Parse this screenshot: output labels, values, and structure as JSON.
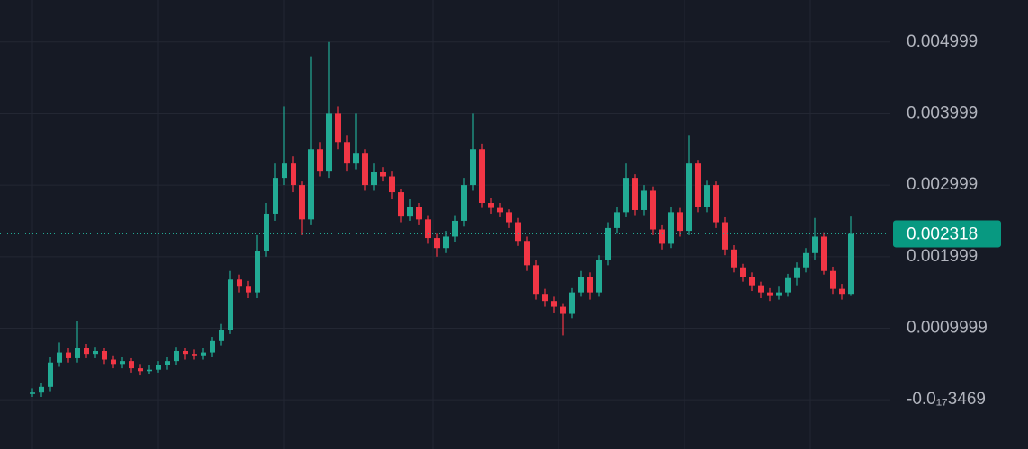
{
  "chart_data": {
    "type": "candlestick",
    "up_color": "#22ab94",
    "down_color": "#f23645",
    "grid": true,
    "ylim": [
      -0.000688,
      0.005586
    ],
    "yticks": [
      {
        "value": -3.469e-18,
        "label": "-0.0₁₇3469"
      },
      0.0009999,
      0.001999,
      0.002999,
      0.003999,
      0.004999
    ],
    "last_price": 0.002318,
    "open": [
      8e-05,
      0.0001,
      0.00018,
      0.00052,
      0.00066,
      0.00058,
      0.00072,
      0.00064,
      0.00068,
      0.00056,
      0.0005,
      0.00054,
      0.00044,
      0.0004,
      0.00042,
      0.00048,
      0.00054,
      0.00068,
      0.00064,
      0.00062,
      0.00066,
      0.00082,
      0.00098,
      0.00168,
      0.00158,
      0.0015,
      0.00208,
      0.0026,
      0.0031,
      0.0033,
      0.003,
      0.00252,
      0.0035,
      0.0032,
      0.004,
      0.0036,
      0.0033,
      0.00345,
      0.003,
      0.00318,
      0.00312,
      0.0029,
      0.00256,
      0.0027,
      0.00252,
      0.00226,
      0.00212,
      0.00228,
      0.0025,
      0.003,
      0.0035,
      0.00275,
      0.00268,
      0.00262,
      0.00248,
      0.00222,
      0.00188,
      0.00148,
      0.00138,
      0.0013,
      0.0012,
      0.0015,
      0.00172,
      0.0015,
      0.00195,
      0.0024,
      0.00262,
      0.0031,
      0.00265,
      0.00292,
      0.00238,
      0.00218,
      0.00262,
      0.00236,
      0.0033,
      0.0027,
      0.003,
      0.00248,
      0.0021,
      0.00185,
      0.00172,
      0.0016,
      0.0015,
      0.00145,
      0.0015,
      0.0017,
      0.00185,
      0.00205,
      0.00228,
      0.0018,
      0.00155,
      0.00148
    ],
    "high": [
      0.00016,
      0.00024,
      0.0006,
      0.0008,
      0.00072,
      0.0011,
      0.00078,
      0.00074,
      0.00072,
      0.00062,
      0.0006,
      0.00058,
      0.0005,
      0.00048,
      0.00054,
      0.0006,
      0.00074,
      0.00072,
      0.0007,
      0.00072,
      0.00088,
      0.00106,
      0.0018,
      0.00175,
      0.00166,
      0.0023,
      0.00275,
      0.0033,
      0.0041,
      0.0034,
      0.00305,
      0.0048,
      0.0036,
      0.005,
      0.0041,
      0.0037,
      0.004,
      0.0035,
      0.0033,
      0.00325,
      0.0032,
      0.00295,
      0.0028,
      0.00275,
      0.00258,
      0.00232,
      0.00236,
      0.00258,
      0.0031,
      0.004,
      0.00358,
      0.00282,
      0.00275,
      0.00266,
      0.00254,
      0.00228,
      0.00195,
      0.00155,
      0.00144,
      0.00135,
      0.00156,
      0.0018,
      0.00178,
      0.00202,
      0.00248,
      0.0027,
      0.0033,
      0.00315,
      0.003,
      0.00298,
      0.00245,
      0.0027,
      0.00268,
      0.0037,
      0.00335,
      0.00306,
      0.00305,
      0.00255,
      0.00216,
      0.0019,
      0.00178,
      0.00165,
      0.00156,
      0.00158,
      0.00176,
      0.00192,
      0.00212,
      0.00254,
      0.00234,
      0.00186,
      0.00162,
      0.00256
    ],
    "low": [
      4e-05,
      4e-05,
      0.00012,
      0.00046,
      0.00052,
      0.00052,
      0.00058,
      0.00058,
      0.0005,
      0.00044,
      0.00044,
      0.00038,
      0.00034,
      0.00036,
      0.00038,
      0.00042,
      0.00048,
      0.00056,
      0.00056,
      0.00056,
      0.0006,
      0.00076,
      0.00092,
      0.0015,
      0.00142,
      0.00142,
      0.002,
      0.0025,
      0.003,
      0.0029,
      0.0023,
      0.00245,
      0.00312,
      0.0031,
      0.0035,
      0.0032,
      0.00322,
      0.00292,
      0.00292,
      0.00305,
      0.0028,
      0.00248,
      0.0025,
      0.00245,
      0.00218,
      0.002,
      0.00205,
      0.0022,
      0.00242,
      0.00292,
      0.00268,
      0.0026,
      0.00255,
      0.0024,
      0.00215,
      0.0018,
      0.0014,
      0.0013,
      0.00122,
      0.0009,
      0.00114,
      0.00144,
      0.0014,
      0.00144,
      0.00188,
      0.00232,
      0.00255,
      0.00258,
      0.00258,
      0.0023,
      0.0021,
      0.00212,
      0.00228,
      0.0023,
      0.00262,
      0.00262,
      0.0024,
      0.00202,
      0.00178,
      0.00165,
      0.00152,
      0.00142,
      0.00138,
      0.0014,
      0.00144,
      0.0016,
      0.00178,
      0.00196,
      0.00175,
      0.00148,
      0.0014,
      0.00145
    ],
    "close": [
      0.0001,
      0.00018,
      0.00052,
      0.00066,
      0.00058,
      0.00072,
      0.00064,
      0.00068,
      0.00056,
      0.0005,
      0.00054,
      0.00044,
      0.0004,
      0.00042,
      0.00048,
      0.00054,
      0.00068,
      0.00064,
      0.00062,
      0.00066,
      0.00082,
      0.00098,
      0.00168,
      0.00158,
      0.0015,
      0.00208,
      0.0026,
      0.0031,
      0.0033,
      0.003,
      0.00252,
      0.0035,
      0.0032,
      0.004,
      0.0036,
      0.0033,
      0.00345,
      0.003,
      0.00318,
      0.00312,
      0.0029,
      0.00256,
      0.0027,
      0.00252,
      0.00226,
      0.00212,
      0.00228,
      0.0025,
      0.003,
      0.0035,
      0.00275,
      0.00268,
      0.00262,
      0.00248,
      0.00222,
      0.00188,
      0.00148,
      0.00138,
      0.0013,
      0.0012,
      0.0015,
      0.00172,
      0.0015,
      0.00195,
      0.0024,
      0.00262,
      0.0031,
      0.00265,
      0.00292,
      0.00238,
      0.00218,
      0.00262,
      0.00236,
      0.0033,
      0.0027,
      0.003,
      0.00248,
      0.0021,
      0.00185,
      0.00172,
      0.0016,
      0.0015,
      0.00145,
      0.0015,
      0.0017,
      0.00185,
      0.00205,
      0.00228,
      0.0018,
      0.00155,
      0.00148,
      0.002318
    ]
  }
}
